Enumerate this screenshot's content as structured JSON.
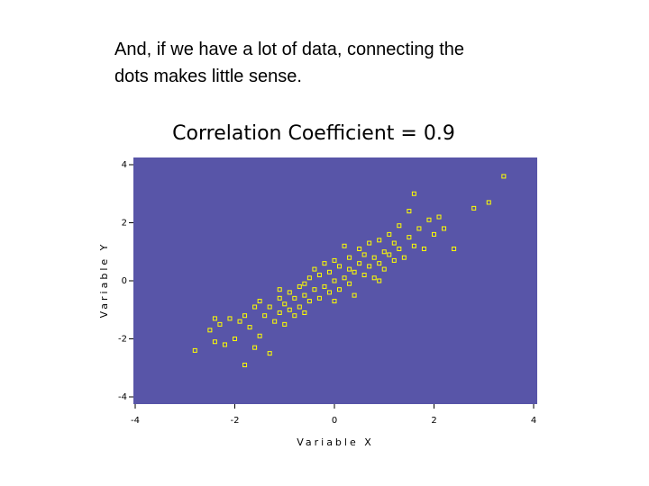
{
  "slide_text": [
    "And, if we have a lot of data, connecting the",
    "dots makes little sense."
  ],
  "chart_data": {
    "type": "scatter",
    "title": "Correlation Coefficient = 0.9",
    "x_label": "Variable X",
    "y_label": "Variable Y",
    "xlim": [
      -4,
      4
    ],
    "ylim": [
      -4,
      4
    ],
    "xticks": [
      -4,
      -2,
      0,
      2,
      4
    ],
    "yticks": [
      -4,
      -2,
      0,
      2,
      4
    ],
    "color": "#ffff00",
    "background": "#5855a8",
    "x": [
      -2.8,
      -2.5,
      -2.4,
      -2.3,
      -2.2,
      -2.1,
      -2.0,
      -1.9,
      -1.8,
      -1.8,
      -1.7,
      -1.6,
      -1.5,
      -1.5,
      -1.4,
      -1.3,
      -1.3,
      -1.2,
      -1.1,
      -1.1,
      -1.0,
      -1.0,
      -0.9,
      -0.9,
      -0.8,
      -0.8,
      -0.7,
      -0.7,
      -0.6,
      -0.6,
      -0.5,
      -0.5,
      -0.4,
      -0.4,
      -0.3,
      -0.3,
      -0.2,
      -0.2,
      -0.1,
      -0.1,
      0.0,
      0.0,
      0.1,
      0.1,
      0.2,
      0.2,
      0.3,
      0.3,
      0.4,
      0.4,
      0.5,
      0.5,
      0.6,
      0.6,
      0.7,
      0.7,
      0.8,
      0.8,
      0.9,
      0.9,
      1.0,
      1.0,
      1.1,
      1.1,
      1.2,
      1.2,
      1.3,
      1.3,
      1.4,
      1.5,
      1.6,
      1.6,
      1.7,
      1.8,
      1.9,
      2.0,
      2.1,
      2.2,
      2.4,
      2.8,
      3.1,
      3.4,
      -1.6,
      -0.6,
      0.3,
      1.5,
      -2.4,
      -1.1,
      0.0,
      0.9
    ],
    "values": [
      -2.4,
      -1.7,
      -2.1,
      -1.5,
      -2.2,
      -1.3,
      -2.0,
      -1.4,
      -2.9,
      -1.2,
      -1.6,
      -0.9,
      -1.9,
      -0.7,
      -1.2,
      -2.5,
      -0.9,
      -1.4,
      -0.6,
      -1.1,
      -0.8,
      -1.5,
      -0.4,
      -1.0,
      -0.6,
      -1.2,
      -0.2,
      -0.9,
      -0.5,
      -1.1,
      0.1,
      -0.7,
      -0.3,
      0.4,
      -0.6,
      0.2,
      -0.2,
      0.6,
      -0.4,
      0.3,
      0.0,
      0.7,
      -0.3,
      0.5,
      0.1,
      1.2,
      -0.1,
      0.8,
      0.3,
      -0.5,
      0.6,
      1.1,
      0.2,
      0.9,
      0.5,
      1.3,
      0.1,
      0.8,
      0.6,
      1.4,
      0.4,
      1.0,
      0.9,
      1.6,
      0.7,
      1.3,
      1.1,
      1.9,
      0.8,
      1.5,
      3.0,
      1.2,
      1.8,
      1.1,
      2.1,
      1.6,
      2.2,
      1.8,
      1.1,
      2.5,
      2.7,
      3.6,
      -2.3,
      -0.1,
      0.4,
      2.4,
      -1.3,
      -0.3,
      -0.7,
      0.0
    ]
  }
}
